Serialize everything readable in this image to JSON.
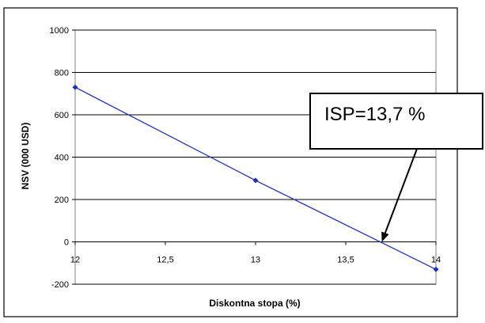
{
  "chart_data": {
    "type": "line",
    "title": "",
    "xlabel": "Diskontna stopa (%)",
    "ylabel": "NSV (000 USD)",
    "xlim": [
      12,
      14
    ],
    "ylim": [
      -200,
      1000
    ],
    "x_ticks": [
      "12",
      "12,5",
      "13",
      "13,5",
      "14"
    ],
    "y_ticks": [
      "-200",
      "0",
      "200",
      "400",
      "600",
      "800",
      "1000"
    ],
    "grid": true,
    "series": [
      {
        "x": [
          12,
          13,
          14
        ],
        "y": [
          730,
          290,
          -130
        ],
        "color": "#1f2ccf"
      }
    ],
    "annotation": {
      "text": "ISP=13,7 %",
      "x": 13.7,
      "y": 0
    }
  }
}
